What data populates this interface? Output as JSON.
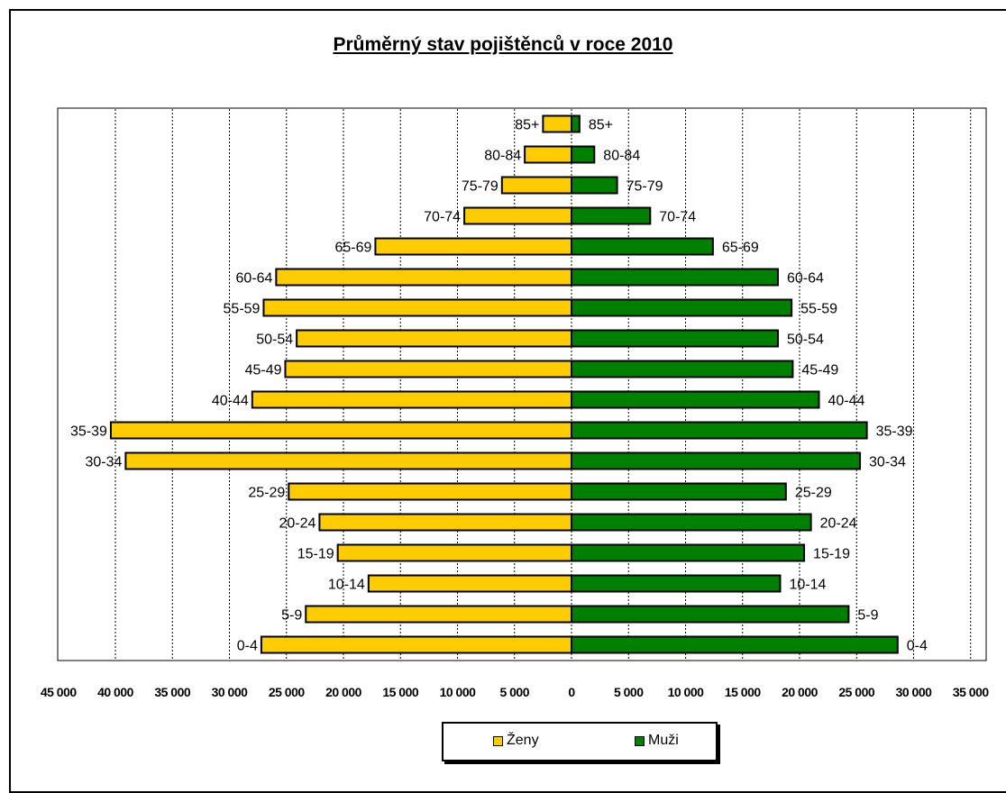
{
  "chart_data": {
    "type": "bar",
    "title": "Průměrný stav pojištěnců v roce 2010",
    "categories": [
      "85+",
      "80-84",
      "75-79",
      "70-74",
      "65-69",
      "60-64",
      "55-59",
      "50-54",
      "45-49",
      "40-44",
      "35-39",
      "30-34",
      "25-29",
      "20-24",
      "15-19",
      "10-14",
      "5-9",
      "0-4"
    ],
    "series": [
      {
        "name": "Ženy",
        "side": "left",
        "color": "#ffcc00",
        "values": [
          2500,
          4100,
          6100,
          9400,
          17200,
          25900,
          27000,
          24100,
          25100,
          28000,
          40400,
          39100,
          24800,
          22100,
          20500,
          17800,
          23300,
          27200
        ]
      },
      {
        "name": "Muži",
        "side": "right",
        "color": "#008000",
        "values": [
          700,
          2000,
          4000,
          6900,
          12400,
          18100,
          19300,
          18100,
          19400,
          21700,
          25900,
          25300,
          18800,
          21000,
          20400,
          18300,
          24300,
          28600
        ]
      }
    ],
    "xlim_left": [
      0,
      45000
    ],
    "xlim_right": [
      0,
      35000
    ],
    "x_ticks_left": [
      "45 000",
      "40 000",
      "35 000",
      "30 000",
      "25 000",
      "20 000",
      "15 000",
      "10 000",
      "5 000"
    ],
    "x_tick_zero": "0",
    "x_ticks_right": [
      "5 000",
      "10 000",
      "15 000",
      "20 000",
      "25 000",
      "30 000",
      "35 000"
    ],
    "x_tick_values_left": [
      45000,
      40000,
      35000,
      30000,
      25000,
      20000,
      15000,
      10000,
      5000
    ],
    "x_tick_values_right": [
      5000,
      10000,
      15000,
      20000,
      25000,
      30000,
      35000
    ],
    "grid": "vertical dashed",
    "legend_position": "bottom"
  }
}
